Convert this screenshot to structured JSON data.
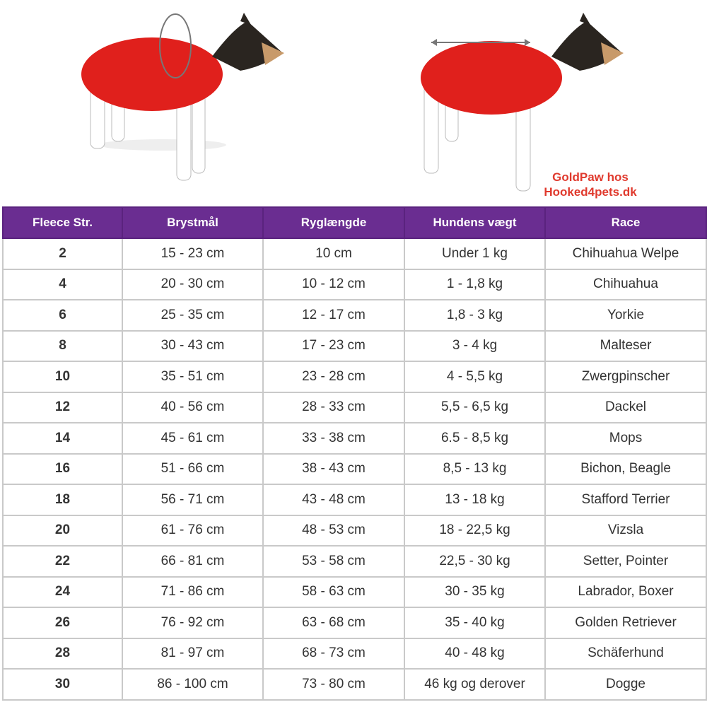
{
  "header": {
    "credit_line1": "GoldPaw hos",
    "credit_line2": "Hooked4pets.dk"
  },
  "table": {
    "columns": [
      "Fleece Str.",
      "Brystmål",
      "Ryglængde",
      "Hundens vægt",
      "Race"
    ],
    "rows": [
      [
        "2",
        "15 - 23 cm",
        "10 cm",
        "Under 1 kg",
        "Chihuahua Welpe"
      ],
      [
        "4",
        "20 - 30 cm",
        "10 - 12 cm",
        "1 - 1,8 kg",
        "Chihuahua"
      ],
      [
        "6",
        "25 - 35 cm",
        "12 - 17 cm",
        "1,8 - 3 kg",
        "Yorkie"
      ],
      [
        "8",
        "30 - 43 cm",
        "17 - 23 cm",
        "3 - 4 kg",
        "Malteser"
      ],
      [
        "10",
        "35 - 51 cm",
        "23 - 28 cm",
        "4 - 5,5 kg",
        "Zwergpinscher"
      ],
      [
        "12",
        "40 - 56 cm",
        "28 - 33 cm",
        "5,5 - 6,5 kg",
        "Dackel"
      ],
      [
        "14",
        "45 - 61 cm",
        "33 - 38 cm",
        "6.5 - 8,5 kg",
        "Mops"
      ],
      [
        "16",
        "51 - 66 cm",
        "38 - 43 cm",
        "8,5 - 13 kg",
        "Bichon, Beagle"
      ],
      [
        "18",
        "56 - 71 cm",
        "43 - 48 cm",
        "13 - 18 kg",
        "Stafford Terrier"
      ],
      [
        "20",
        "61 - 76 cm",
        "48 - 53 cm",
        "18 - 22,5 kg",
        "Vizsla"
      ],
      [
        "22",
        "66 - 81 cm",
        "53 - 58 cm",
        "22,5 - 30 kg",
        "Setter, Pointer"
      ],
      [
        "24",
        "71 - 86 cm",
        "58 - 63 cm",
        "30 - 35 kg",
        "Labrador, Boxer"
      ],
      [
        "26",
        "76 - 92 cm",
        "63 - 68 cm",
        "35 - 40 kg",
        "Golden Retriever"
      ],
      [
        "28",
        "81 - 97 cm",
        "68 - 73 cm",
        "40 - 48 kg",
        "Schäferhund"
      ],
      [
        "30",
        "86 - 100 cm",
        "73 - 80 cm",
        "46 kg og derover",
        "Dogge"
      ]
    ]
  }
}
